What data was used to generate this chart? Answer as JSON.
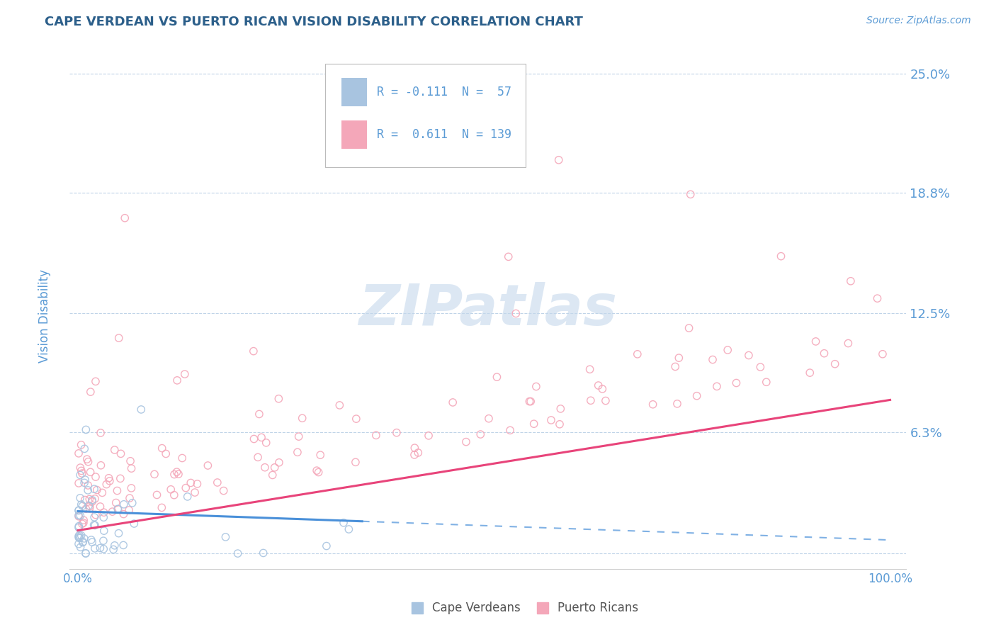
{
  "title": "CAPE VERDEAN VS PUERTO RICAN VISION DISABILITY CORRELATION CHART",
  "source_text": "Source: ZipAtlas.com",
  "ylabel": "Vision Disability",
  "legend_label1": "Cape Verdeans",
  "legend_label2": "Puerto Ricans",
  "r1": -0.111,
  "n1": 57,
  "r2": 0.611,
  "n2": 139,
  "color1": "#a8c4e0",
  "color2": "#f4a7b9",
  "line1_color": "#4a90d9",
  "line2_color": "#e8447a",
  "title_color": "#2c5f8a",
  "axis_color": "#5b9bd5",
  "legend_text_color": "#333333",
  "watermark_color": "#c5d8ec",
  "ytick_vals": [
    0.0,
    0.063,
    0.125,
    0.188,
    0.25
  ],
  "ytick_labels": [
    "",
    "6.3%",
    "12.5%",
    "18.8%",
    "25.0%"
  ],
  "seed": 99
}
